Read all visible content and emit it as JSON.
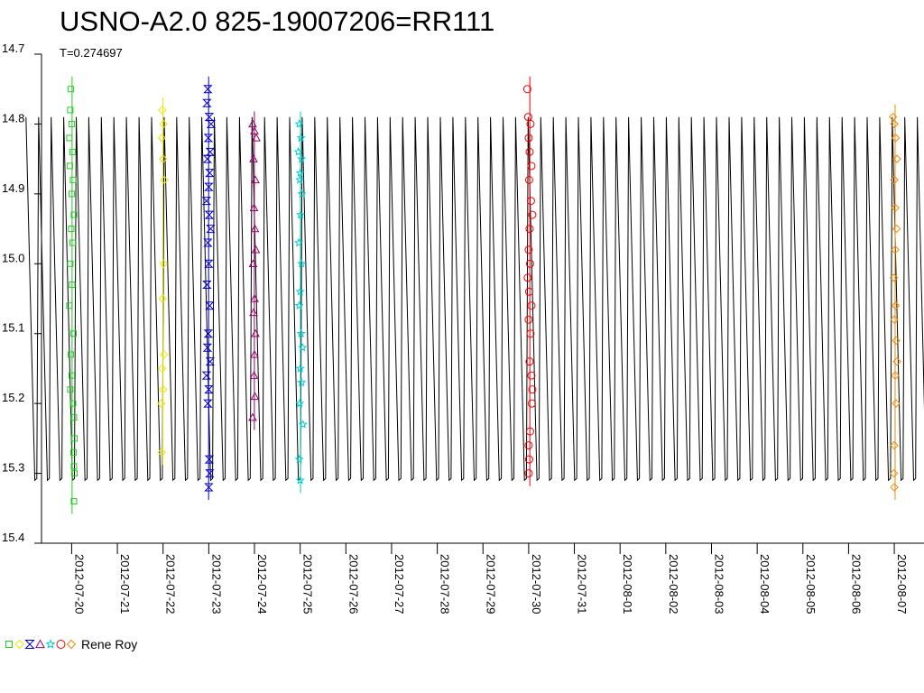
{
  "chart_data": {
    "type": "scatter",
    "title": "USNO-A2.0 825-19007206=RR111",
    "subtitle": "T=0.274697",
    "xlabel": "",
    "ylabel": "",
    "y_inverted": true,
    "ylim": [
      14.7,
      15.4
    ],
    "y_ticks": [
      "14.7",
      "14.8",
      "14.9",
      "15.0",
      "15.1",
      "15.2",
      "15.3",
      "15.4"
    ],
    "x_tick_labels": [
      "2012-07-20",
      "2012-07-21",
      "2012-07-22",
      "2012-07-23",
      "2012-07-24",
      "2012-07-25",
      "2012-07-26",
      "2012-07-27",
      "2012-07-28",
      "2012-07-29",
      "2012-07-30",
      "2012-07-31",
      "2012-08-01",
      "2012-08-02",
      "2012-08-03",
      "2012-08-04",
      "2012-08-05",
      "2012-08-06",
      "2012-08-07"
    ],
    "xlim_days": [
      -0.66,
      18.65
    ],
    "model": {
      "period": 0.274697,
      "max_mag": 14.79,
      "min_mag": 15.31,
      "epoch_day": 0.1
    },
    "legend_author": "Rene Roy",
    "grid": false,
    "series": [
      {
        "color": "#22cc22",
        "marker": "square",
        "points": [
          [
            -0.02,
            14.75
          ],
          [
            -0.03,
            14.78
          ],
          [
            0.0,
            14.8
          ],
          [
            -0.05,
            14.82
          ],
          [
            0.02,
            14.84
          ],
          [
            -0.04,
            14.86
          ],
          [
            0.03,
            14.88
          ],
          [
            0.0,
            14.9
          ],
          [
            0.05,
            14.93
          ],
          [
            -0.01,
            14.95
          ],
          [
            0.02,
            14.97
          ],
          [
            -0.03,
            15.0
          ],
          [
            0.01,
            15.03
          ],
          [
            -0.05,
            15.06
          ],
          [
            0.04,
            15.1
          ],
          [
            -0.02,
            15.13
          ],
          [
            0.0,
            15.16
          ],
          [
            -0.03,
            15.18
          ],
          [
            0.03,
            15.2
          ],
          [
            0.05,
            15.22
          ],
          [
            0.06,
            15.25
          ],
          [
            0.04,
            15.27
          ],
          [
            0.05,
            15.29
          ],
          [
            0.06,
            15.3
          ],
          [
            0.05,
            15.34
          ]
        ]
      },
      {
        "color": "#e8e800",
        "marker": "diamond",
        "points": [
          [
            1.98,
            14.78
          ],
          [
            2.01,
            14.8
          ],
          [
            1.97,
            14.82
          ],
          [
            2.0,
            14.85
          ],
          [
            2.03,
            14.88
          ],
          [
            2.01,
            15.0
          ],
          [
            1.99,
            15.05
          ],
          [
            2.02,
            15.13
          ],
          [
            1.98,
            15.15
          ],
          [
            2.0,
            15.18
          ],
          [
            1.96,
            15.2
          ],
          [
            1.97,
            15.27
          ]
        ]
      },
      {
        "color": "#0000cc",
        "marker": "hourglass",
        "points": [
          [
            2.98,
            14.75
          ],
          [
            2.96,
            14.77
          ],
          [
            3.01,
            14.79
          ],
          [
            3.05,
            14.8
          ],
          [
            2.99,
            14.82
          ],
          [
            3.03,
            14.84
          ],
          [
            2.97,
            14.85
          ],
          [
            3.02,
            14.87
          ],
          [
            3.0,
            14.89
          ],
          [
            2.95,
            14.91
          ],
          [
            3.01,
            14.93
          ],
          [
            3.04,
            14.95
          ],
          [
            2.98,
            14.97
          ],
          [
            3.0,
            15.0
          ],
          [
            2.96,
            15.03
          ],
          [
            3.02,
            15.06
          ],
          [
            2.99,
            15.1
          ],
          [
            2.97,
            15.12
          ],
          [
            3.03,
            15.14
          ],
          [
            2.95,
            15.16
          ],
          [
            3.0,
            15.18
          ],
          [
            2.98,
            15.2
          ],
          [
            3.01,
            15.28
          ],
          [
            3.02,
            15.3
          ],
          [
            3.0,
            15.32
          ]
        ]
      },
      {
        "color": "#990066",
        "marker": "triangle",
        "points": [
          [
            3.96,
            14.8
          ],
          [
            4.0,
            14.81
          ],
          [
            4.04,
            14.82
          ],
          [
            3.98,
            14.85
          ],
          [
            4.02,
            14.88
          ],
          [
            3.99,
            14.92
          ],
          [
            4.01,
            14.95
          ],
          [
            4.03,
            14.98
          ],
          [
            3.97,
            15.0
          ],
          [
            4.0,
            15.05
          ],
          [
            3.98,
            15.07
          ],
          [
            4.02,
            15.1
          ],
          [
            4.0,
            15.13
          ],
          [
            3.99,
            15.16
          ],
          [
            4.01,
            15.19
          ],
          [
            3.96,
            15.22
          ]
        ]
      },
      {
        "color": "#00cccc",
        "marker": "star",
        "points": [
          [
            4.98,
            14.8
          ],
          [
            5.02,
            14.82
          ],
          [
            4.96,
            14.84
          ],
          [
            5.03,
            14.85
          ],
          [
            5.0,
            14.87
          ],
          [
            4.99,
            14.88
          ],
          [
            5.04,
            14.9
          ],
          [
            5.01,
            14.93
          ],
          [
            4.97,
            14.97
          ],
          [
            5.03,
            15.0
          ],
          [
            5.0,
            15.04
          ],
          [
            4.98,
            15.06
          ],
          [
            5.02,
            15.1
          ],
          [
            5.05,
            15.12
          ],
          [
            5.0,
            15.15
          ],
          [
            5.03,
            15.17
          ],
          [
            4.99,
            15.2
          ],
          [
            5.06,
            15.23
          ],
          [
            4.98,
            15.28
          ],
          [
            5.0,
            15.31
          ]
        ]
      },
      {
        "color": "#ee0000",
        "marker": "circle",
        "points": [
          [
            9.97,
            14.75
          ],
          [
            9.99,
            14.79
          ],
          [
            10.04,
            14.8
          ],
          [
            10.0,
            14.82
          ],
          [
            10.02,
            14.84
          ],
          [
            10.06,
            14.86
          ],
          [
            10.01,
            14.88
          ],
          [
            10.05,
            14.91
          ],
          [
            10.08,
            14.93
          ],
          [
            10.02,
            14.95
          ],
          [
            10.0,
            14.98
          ],
          [
            10.03,
            15.0
          ],
          [
            9.98,
            15.02
          ],
          [
            10.01,
            15.04
          ],
          [
            10.06,
            15.06
          ],
          [
            10.0,
            15.08
          ],
          [
            10.04,
            15.1
          ],
          [
            10.02,
            15.14
          ],
          [
            10.06,
            15.16
          ],
          [
            10.08,
            15.18
          ],
          [
            10.07,
            15.2
          ],
          [
            10.03,
            15.24
          ],
          [
            10.0,
            15.26
          ],
          [
            10.01,
            15.28
          ],
          [
            10.0,
            15.3
          ]
        ]
      },
      {
        "color": "#ee8800",
        "marker": "diamond",
        "points": [
          [
            17.97,
            14.79
          ],
          [
            18.0,
            14.8
          ],
          [
            18.03,
            14.82
          ],
          [
            18.06,
            14.85
          ],
          [
            18.0,
            14.88
          ],
          [
            18.02,
            14.92
          ],
          [
            18.05,
            14.95
          ],
          [
            18.02,
            14.98
          ],
          [
            17.99,
            15.02
          ],
          [
            18.03,
            15.06
          ],
          [
            18.0,
            15.08
          ],
          [
            18.04,
            15.11
          ],
          [
            18.06,
            15.14
          ],
          [
            18.02,
            15.16
          ],
          [
            18.04,
            15.2
          ],
          [
            18.0,
            15.26
          ],
          [
            17.99,
            15.3
          ],
          [
            18.0,
            15.32
          ]
        ]
      }
    ]
  }
}
